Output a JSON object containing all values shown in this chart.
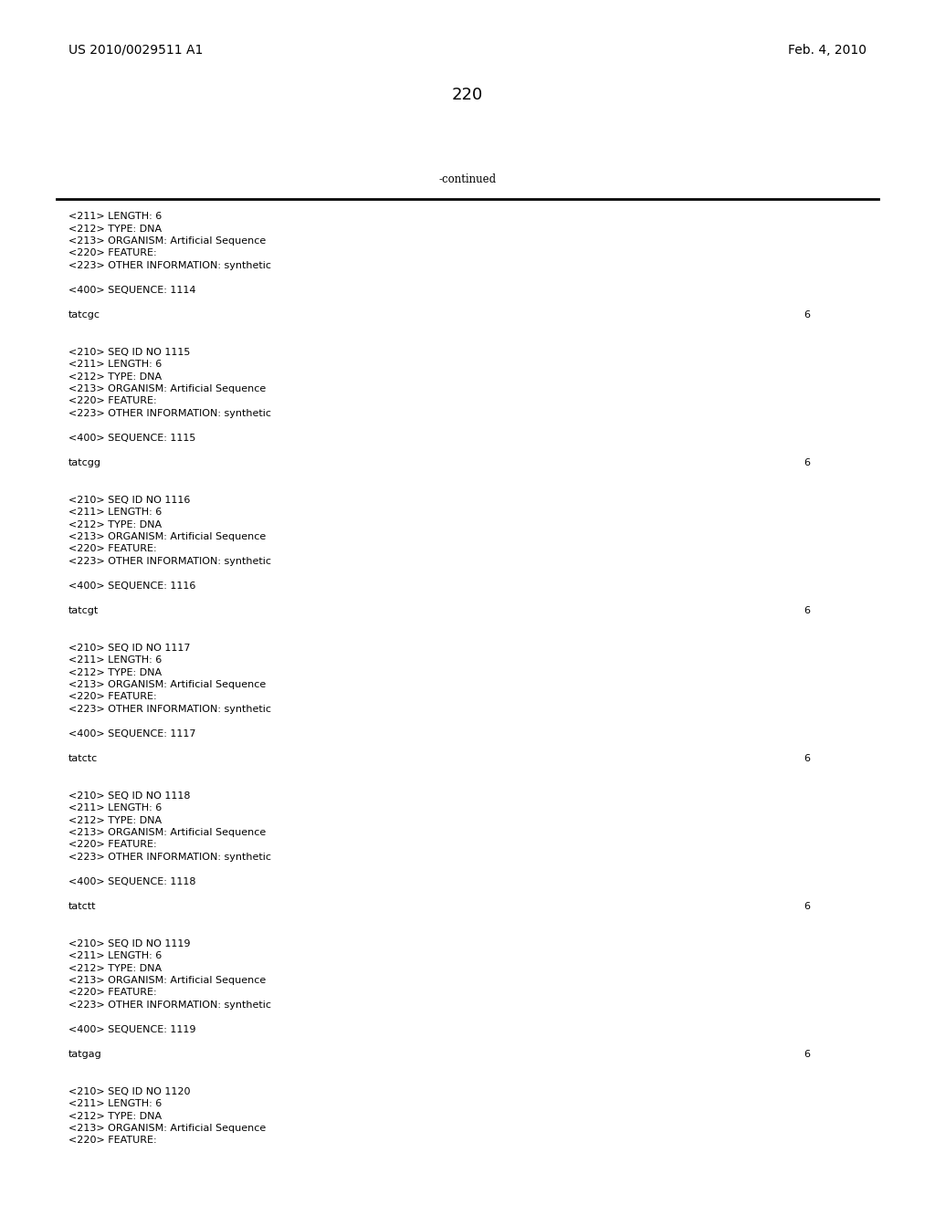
{
  "bg_color": "#ffffff",
  "header_left": "US 2010/0029511 A1",
  "header_right": "Feb. 4, 2010",
  "page_number": "220",
  "continued_text": "-continued",
  "mono_font_size": 8.0,
  "header_font_size": 10.0,
  "page_num_font_size": 13.0,
  "content_lines": [
    {
      "text": "<211> LENGTH: 6",
      "num": null
    },
    {
      "text": "<212> TYPE: DNA",
      "num": null
    },
    {
      "text": "<213> ORGANISM: Artificial Sequence",
      "num": null
    },
    {
      "text": "<220> FEATURE:",
      "num": null
    },
    {
      "text": "<223> OTHER INFORMATION: synthetic",
      "num": null
    },
    {
      "text": "",
      "num": null
    },
    {
      "text": "<400> SEQUENCE: 1114",
      "num": null
    },
    {
      "text": "",
      "num": null
    },
    {
      "text": "tatcgc",
      "num": "6"
    },
    {
      "text": "",
      "num": null
    },
    {
      "text": "",
      "num": null
    },
    {
      "text": "<210> SEQ ID NO 1115",
      "num": null
    },
    {
      "text": "<211> LENGTH: 6",
      "num": null
    },
    {
      "text": "<212> TYPE: DNA",
      "num": null
    },
    {
      "text": "<213> ORGANISM: Artificial Sequence",
      "num": null
    },
    {
      "text": "<220> FEATURE:",
      "num": null
    },
    {
      "text": "<223> OTHER INFORMATION: synthetic",
      "num": null
    },
    {
      "text": "",
      "num": null
    },
    {
      "text": "<400> SEQUENCE: 1115",
      "num": null
    },
    {
      "text": "",
      "num": null
    },
    {
      "text": "tatcgg",
      "num": "6"
    },
    {
      "text": "",
      "num": null
    },
    {
      "text": "",
      "num": null
    },
    {
      "text": "<210> SEQ ID NO 1116",
      "num": null
    },
    {
      "text": "<211> LENGTH: 6",
      "num": null
    },
    {
      "text": "<212> TYPE: DNA",
      "num": null
    },
    {
      "text": "<213> ORGANISM: Artificial Sequence",
      "num": null
    },
    {
      "text": "<220> FEATURE:",
      "num": null
    },
    {
      "text": "<223> OTHER INFORMATION: synthetic",
      "num": null
    },
    {
      "text": "",
      "num": null
    },
    {
      "text": "<400> SEQUENCE: 1116",
      "num": null
    },
    {
      "text": "",
      "num": null
    },
    {
      "text": "tatcgt",
      "num": "6"
    },
    {
      "text": "",
      "num": null
    },
    {
      "text": "",
      "num": null
    },
    {
      "text": "<210> SEQ ID NO 1117",
      "num": null
    },
    {
      "text": "<211> LENGTH: 6",
      "num": null
    },
    {
      "text": "<212> TYPE: DNA",
      "num": null
    },
    {
      "text": "<213> ORGANISM: Artificial Sequence",
      "num": null
    },
    {
      "text": "<220> FEATURE:",
      "num": null
    },
    {
      "text": "<223> OTHER INFORMATION: synthetic",
      "num": null
    },
    {
      "text": "",
      "num": null
    },
    {
      "text": "<400> SEQUENCE: 1117",
      "num": null
    },
    {
      "text": "",
      "num": null
    },
    {
      "text": "tatctc",
      "num": "6"
    },
    {
      "text": "",
      "num": null
    },
    {
      "text": "",
      "num": null
    },
    {
      "text": "<210> SEQ ID NO 1118",
      "num": null
    },
    {
      "text": "<211> LENGTH: 6",
      "num": null
    },
    {
      "text": "<212> TYPE: DNA",
      "num": null
    },
    {
      "text": "<213> ORGANISM: Artificial Sequence",
      "num": null
    },
    {
      "text": "<220> FEATURE:",
      "num": null
    },
    {
      "text": "<223> OTHER INFORMATION: synthetic",
      "num": null
    },
    {
      "text": "",
      "num": null
    },
    {
      "text": "<400> SEQUENCE: 1118",
      "num": null
    },
    {
      "text": "",
      "num": null
    },
    {
      "text": "tatctt",
      "num": "6"
    },
    {
      "text": "",
      "num": null
    },
    {
      "text": "",
      "num": null
    },
    {
      "text": "<210> SEQ ID NO 1119",
      "num": null
    },
    {
      "text": "<211> LENGTH: 6",
      "num": null
    },
    {
      "text": "<212> TYPE: DNA",
      "num": null
    },
    {
      "text": "<213> ORGANISM: Artificial Sequence",
      "num": null
    },
    {
      "text": "<220> FEATURE:",
      "num": null
    },
    {
      "text": "<223> OTHER INFORMATION: synthetic",
      "num": null
    },
    {
      "text": "",
      "num": null
    },
    {
      "text": "<400> SEQUENCE: 1119",
      "num": null
    },
    {
      "text": "",
      "num": null
    },
    {
      "text": "tatgag",
      "num": "6"
    },
    {
      "text": "",
      "num": null
    },
    {
      "text": "",
      "num": null
    },
    {
      "text": "<210> SEQ ID NO 1120",
      "num": null
    },
    {
      "text": "<211> LENGTH: 6",
      "num": null
    },
    {
      "text": "<212> TYPE: DNA",
      "num": null
    },
    {
      "text": "<213> ORGANISM: Artificial Sequence",
      "num": null
    },
    {
      "text": "<220> FEATURE:",
      "num": null
    }
  ]
}
